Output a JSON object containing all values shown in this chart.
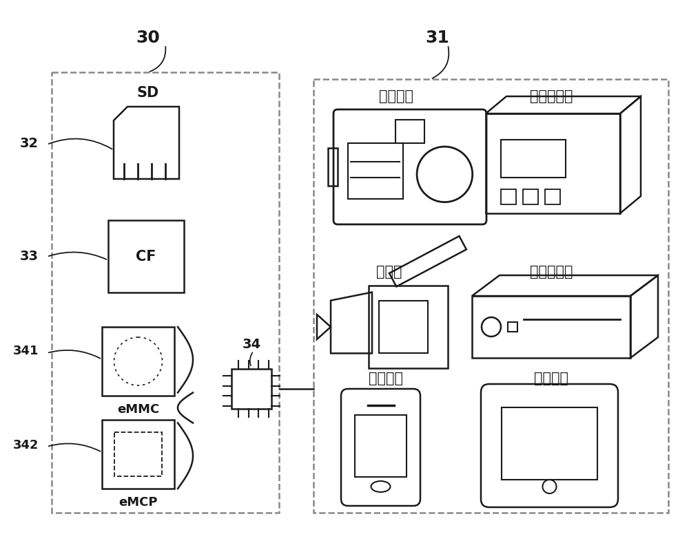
{
  "bg_color": "#ffffff",
  "line_color": "#1a1a1a",
  "dashed_color": "#888888",
  "label_30": "30",
  "label_31": "31",
  "label_32": "32",
  "label_33": "33",
  "label_34": "34",
  "label_341": "341",
  "label_342": "342",
  "label_SD": "SD",
  "label_CF": "CF",
  "label_eMMC": "eMMC",
  "label_eMCP": "eMCP",
  "label_camera": "数码相机",
  "label_audio": "音频播放器",
  "label_video_cam": "摄影机",
  "label_video_player": "视频播放器",
  "label_comm": "通讯装置",
  "label_tablet": "平板电脑",
  "figw": 10.0,
  "figh": 7.89
}
